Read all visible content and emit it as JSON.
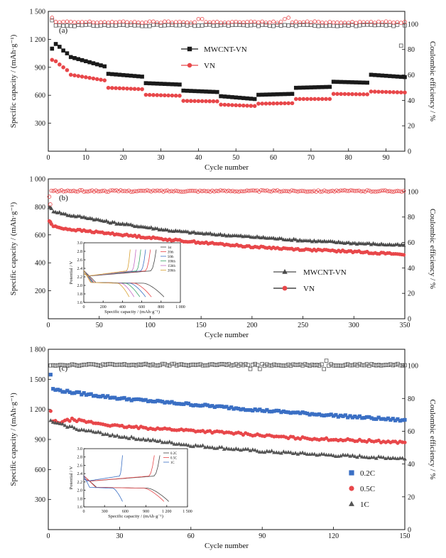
{
  "chart_data": [
    {
      "type": "scatter",
      "panel_label": "(a)",
      "xlabel": "Cycle number",
      "ylabel": "Specific capacity / (mAh·g⁻¹)",
      "y2label": "Coulombic efficiency / %",
      "xlim": [
        0,
        95
      ],
      "ylim": [
        0,
        1500
      ],
      "y2lim": [
        0,
        110
      ],
      "xticks": [
        0,
        10,
        20,
        30,
        40,
        50,
        60,
        70,
        80,
        90
      ],
      "xtick_labels": [
        "0",
        "10",
        "20",
        "30",
        "40",
        "50",
        "60",
        "70",
        "80",
        "90"
      ],
      "yticks": [
        300,
        600,
        900,
        1200,
        1500
      ],
      "ytick_labels": [
        "300",
        "600",
        "900",
        "1 200",
        "1 500"
      ],
      "y2ticks": [
        0,
        20,
        40,
        60,
        80,
        100
      ],
      "y2tick_labels": [
        "0",
        "20",
        "40",
        "60",
        "80",
        "100"
      ],
      "legend_position": "upper-center",
      "series": [
        {
          "name": "MWCNT-VN",
          "marker": "square",
          "color": "#1a1a1a",
          "axis": "left",
          "segments": [
            {
              "x0": 1,
              "x1": 1,
              "values": [
                1100
              ]
            },
            {
              "x0": 2,
              "x1": 2,
              "values": [
                1150
              ]
            },
            {
              "x0": 3,
              "x1": 3,
              "values": [
                1120
              ]
            },
            {
              "x0": 4,
              "x1": 4,
              "values": [
                1080
              ]
            },
            {
              "x0": 5,
              "x1": 5,
              "values": [
                1050
              ]
            },
            {
              "x0": 6,
              "x1": 15,
              "start": 1010,
              "end": 910
            },
            {
              "x0": 16,
              "x1": 25,
              "start": 830,
              "end": 800
            },
            {
              "x0": 26,
              "x1": 35,
              "start": 730,
              "end": 715
            },
            {
              "x0": 36,
              "x1": 45,
              "start": 650,
              "end": 635
            },
            {
              "x0": 46,
              "x1": 55,
              "start": 590,
              "end": 560
            },
            {
              "x0": 56,
              "x1": 65,
              "start": 605,
              "end": 615
            },
            {
              "x0": 66,
              "x1": 75,
              "start": 680,
              "end": 690
            },
            {
              "x0": 76,
              "x1": 85,
              "start": 745,
              "end": 735
            },
            {
              "x0": 86,
              "x1": 95,
              "start": 820,
              "end": 795
            }
          ]
        },
        {
          "name": "VN",
          "marker": "circle",
          "color": "#e8474a",
          "axis": "left",
          "segments": [
            {
              "x0": 1,
              "x1": 1,
              "values": [
                980
              ]
            },
            {
              "x0": 2,
              "x1": 2,
              "values": [
                965
              ]
            },
            {
              "x0": 3,
              "x1": 3,
              "values": [
                930
              ]
            },
            {
              "x0": 4,
              "x1": 4,
              "values": [
                900
              ]
            },
            {
              "x0": 5,
              "x1": 5,
              "values": [
                870
              ]
            },
            {
              "x0": 6,
              "x1": 15,
              "start": 820,
              "end": 760
            },
            {
              "x0": 16,
              "x1": 25,
              "start": 680,
              "end": 665
            },
            {
              "x0": 26,
              "x1": 35,
              "start": 605,
              "end": 595
            },
            {
              "x0": 36,
              "x1": 45,
              "start": 540,
              "end": 535
            },
            {
              "x0": 46,
              "x1": 55,
              "start": 500,
              "end": 485
            },
            {
              "x0": 56,
              "x1": 65,
              "start": 510,
              "end": 515
            },
            {
              "x0": 66,
              "x1": 75,
              "start": 560,
              "end": 560
            },
            {
              "x0": 76,
              "x1": 85,
              "start": 615,
              "end": 610
            },
            {
              "x0": 86,
              "x1": 95,
              "start": 640,
              "end": 630
            }
          ]
        },
        {
          "name": "MWCNT-VN efficiency",
          "marker": "square-open",
          "color": "#555555",
          "axis": "right",
          "x_range": [
            1,
            95
          ],
          "level": 99,
          "spikes": [
            [
              1,
              103
            ],
            [
              94,
              83
            ]
          ]
        },
        {
          "name": "VN efficiency",
          "marker": "circle-open",
          "color": "#e8474a",
          "axis": "right",
          "x_range": [
            1,
            95
          ],
          "level": 101.5,
          "spikes": [
            [
              1,
              105
            ],
            [
              40,
              104
            ],
            [
              41,
              104
            ],
            [
              63,
              104
            ],
            [
              64,
              105
            ]
          ]
        }
      ]
    },
    {
      "type": "scatter",
      "panel_label": "(b)",
      "xlabel": "Cycle number",
      "ylabel": "Specific capacity / (mAh·g⁻¹)",
      "y2label": "Coulombic efficiency / %",
      "xlim": [
        0,
        350
      ],
      "ylim": [
        0,
        1000
      ],
      "y2lim": [
        0,
        110
      ],
      "xticks": [
        0,
        50,
        100,
        150,
        200,
        250,
        300,
        350
      ],
      "xtick_labels": [
        "0",
        "50",
        "100",
        "150",
        "200",
        "250",
        "300",
        "350"
      ],
      "yticks": [
        200,
        400,
        600,
        800,
        1000
      ],
      "ytick_labels": [
        "200",
        "400",
        "600",
        "800",
        "1 000"
      ],
      "y2ticks": [
        0,
        20,
        40,
        60,
        80,
        100
      ],
      "y2tick_labels": [
        "0",
        "20",
        "40",
        "60",
        "80",
        "100"
      ],
      "legend_position": "lower-right",
      "series": [
        {
          "name": "MWCNT-VN",
          "marker": "triangle",
          "color": "#4a4a4a",
          "axis": "left",
          "x": [
            1,
            5,
            20,
            40,
            60,
            80,
            100,
            120,
            150,
            200,
            250,
            300,
            350
          ],
          "y": [
            800,
            770,
            740,
            720,
            690,
            670,
            650,
            630,
            610,
            585,
            560,
            540,
            525
          ]
        },
        {
          "name": "VN",
          "marker": "circle",
          "color": "#e8474a",
          "axis": "left",
          "x": [
            1,
            5,
            20,
            40,
            60,
            80,
            100,
            120,
            150,
            200,
            250,
            300,
            350
          ],
          "y": [
            700,
            660,
            640,
            625,
            610,
            595,
            580,
            565,
            545,
            515,
            495,
            480,
            460
          ]
        },
        {
          "name": "Coulombic efficiency",
          "marker": "circle-open",
          "color": "#e8474a",
          "axis": "right",
          "x_range": [
            1,
            350
          ],
          "level": 100.5,
          "spikes": [
            [
              1,
              96
            ],
            [
              2,
              90
            ]
          ]
        }
      ],
      "inset": {
        "xlabel": "Specific capacity / (mAh·g⁻¹)",
        "ylabel": "Potential / V",
        "xlim": [
          0,
          1000
        ],
        "ylim": [
          1.6,
          3.0
        ],
        "xticks": [
          0,
          200,
          400,
          600,
          800,
          1000
        ],
        "xtick_labels": [
          "0",
          "200",
          "400",
          "600",
          "800",
          "1 000"
        ],
        "yticks": [
          1.6,
          1.8,
          2.0,
          2.2,
          2.4,
          2.6,
          2.8,
          3.0
        ],
        "ytick_labels": [
          "1.6",
          "1.8",
          "2.0",
          "2.2",
          "2.4",
          "2.6",
          "2.8",
          "3.0"
        ],
        "legend": [
          "1st",
          "20th",
          "50th",
          "100th",
          "150th",
          "200th"
        ],
        "colors": [
          "#444444",
          "#e8474a",
          "#3a6fc4",
          "#3aa56a",
          "#c46ac4",
          "#d8a030"
        ],
        "charge_end": [
          750,
          690,
          640,
          590,
          540,
          480
        ],
        "discharge_end": [
          830,
          700,
          640,
          580,
          520,
          470
        ]
      }
    },
    {
      "type": "scatter",
      "panel_label": "(c)",
      "xlabel": "Cycle number",
      "ylabel": "Specific capacity / (mAh·g⁻¹)",
      "y2label": "Coulombic efficiency / %",
      "xlim": [
        0,
        150
      ],
      "ylim": [
        0,
        1800
      ],
      "y2lim": [
        0,
        110
      ],
      "xticks": [
        0,
        30,
        60,
        90,
        120,
        150
      ],
      "xtick_labels": [
        "0",
        "30",
        "60",
        "90",
        "120",
        "150"
      ],
      "yticks": [
        300,
        600,
        900,
        1200,
        1500,
        1800
      ],
      "ytick_labels": [
        "300",
        "600",
        "900",
        "1 200",
        "1 500",
        "1 800"
      ],
      "y2ticks": [
        0,
        20,
        40,
        60,
        80,
        100
      ],
      "y2tick_labels": [
        "0",
        "20",
        "40",
        "60",
        "80",
        "100"
      ],
      "legend_position": "lower-right",
      "series": [
        {
          "name": "0.2C",
          "marker": "square",
          "color": "#3a6fc4",
          "axis": "left",
          "x": [
            1,
            2,
            10,
            30,
            60,
            90,
            120,
            150
          ],
          "y": [
            1550,
            1400,
            1370,
            1310,
            1250,
            1190,
            1140,
            1090
          ]
        },
        {
          "name": "0.5C",
          "marker": "circle",
          "color": "#e8474a",
          "axis": "left",
          "x": [
            1,
            2,
            5,
            10,
            15,
            30,
            60,
            80,
            90,
            100,
            120,
            150
          ],
          "y": [
            1180,
            1080,
            1070,
            1100,
            1080,
            1030,
            990,
            960,
            940,
            920,
            900,
            870
          ]
        },
        {
          "name": "1C",
          "marker": "triangle",
          "color": "#555555",
          "axis": "left",
          "x": [
            1,
            5,
            15,
            30,
            60,
            90,
            120,
            150
          ],
          "y": [
            1080,
            1050,
            990,
            930,
            840,
            780,
            740,
            710
          ]
        },
        {
          "name": "Coulombic efficiency",
          "marker": "square-open",
          "color": "#555555",
          "axis": "right",
          "x_range": [
            1,
            150
          ],
          "level": 100.5,
          "spikes": [
            [
              85,
              98
            ],
            [
              89,
              98
            ],
            [
              90,
              101
            ],
            [
              116,
              98
            ],
            [
              117,
              103
            ]
          ]
        }
      ],
      "inset": {
        "xlabel": "Specific capacity / (mAh·g⁻¹)",
        "ylabel": "Potential / V",
        "xlim": [
          0,
          1500
        ],
        "ylim": [
          1.6,
          3.0
        ],
        "xticks": [
          0,
          300,
          600,
          900,
          1200,
          1500
        ],
        "xtick_labels": [
          "0",
          "300",
          "600",
          "900",
          "1 200",
          "1 500"
        ],
        "yticks": [
          1.6,
          1.8,
          2.0,
          2.2,
          2.4,
          2.6,
          2.8,
          3.0
        ],
        "ytick_labels": [
          "1.6",
          "1.8",
          "2.0",
          "2.2",
          "2.4",
          "2.6",
          "2.8",
          "3.0"
        ],
        "legend": [
          "0.2C",
          "0.5C",
          "1C"
        ],
        "colors": [
          "#444444",
          "#e8474a",
          "#3a6fc4"
        ],
        "charge_end": [
          1100,
          1020,
          560
        ],
        "discharge_end": [
          1230,
          1160,
          560
        ]
      }
    }
  ]
}
